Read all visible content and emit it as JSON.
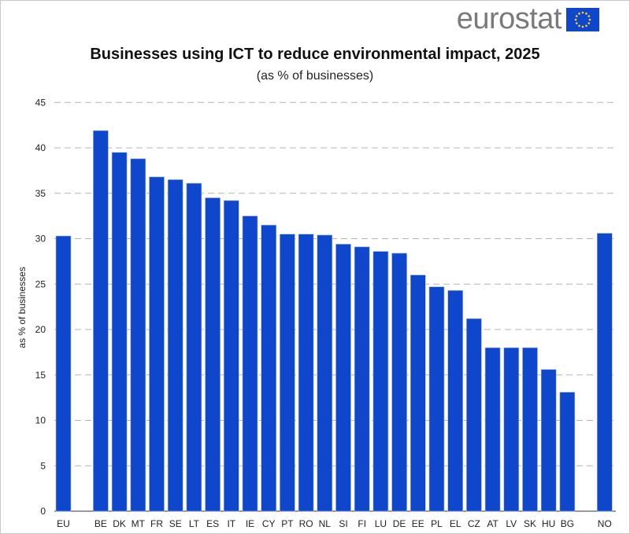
{
  "logo": {
    "text": "eurostat",
    "flag_color": "#0e47cb",
    "star_color": "#ffd617"
  },
  "chart_data": {
    "type": "bar",
    "title": "Businesses using ICT to reduce environmental impact, 2025",
    "subtitle": "(as % of businesses)",
    "ylabel": "as % of businesses",
    "xlabel": "",
    "ylim": [
      0,
      45
    ],
    "yticks": [
      0,
      5,
      10,
      15,
      20,
      25,
      30,
      35,
      40,
      45
    ],
    "grid": true,
    "bar_color": "#0e47cb",
    "categories": [
      "EU",
      "",
      "BE",
      "DK",
      "MT",
      "FR",
      "SE",
      "LT",
      "ES",
      "IT",
      "IE",
      "CY",
      "PT",
      "RO",
      "NL",
      "SI",
      "FI",
      "LU",
      "DE",
      "EE",
      "PL",
      "EL",
      "CZ",
      "AT",
      "LV",
      "SK",
      "HU",
      "BG",
      "",
      "NO"
    ],
    "values": [
      30.3,
      null,
      41.9,
      39.5,
      38.8,
      36.8,
      36.5,
      36.1,
      34.5,
      34.2,
      32.5,
      31.5,
      30.5,
      30.5,
      30.4,
      29.4,
      29.1,
      28.6,
      28.4,
      26.0,
      24.7,
      24.3,
      21.2,
      18.0,
      18.0,
      18.0,
      15.6,
      13.1,
      null,
      30.6
    ]
  }
}
